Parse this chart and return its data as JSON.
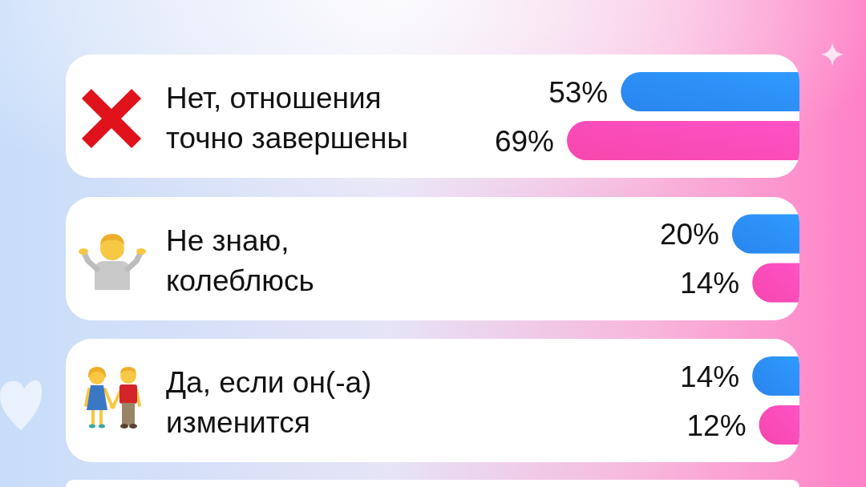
{
  "chart_data": {
    "type": "bar",
    "orientation": "horizontal",
    "categories": [
      "Нет, отношения точно завершены",
      "Не знаю, колеблюсь",
      "Да, если он(-а) изменится"
    ],
    "series": [
      {
        "color": "#2a8af6",
        "values": [
          53,
          20,
          14
        ],
        "value_labels": [
          "53%",
          "20%",
          "14%"
        ]
      },
      {
        "color": "#ff4ab2",
        "values": [
          69,
          14,
          12
        ],
        "value_labels": [
          "69%",
          "14%",
          "12%"
        ]
      }
    ]
  }
}
